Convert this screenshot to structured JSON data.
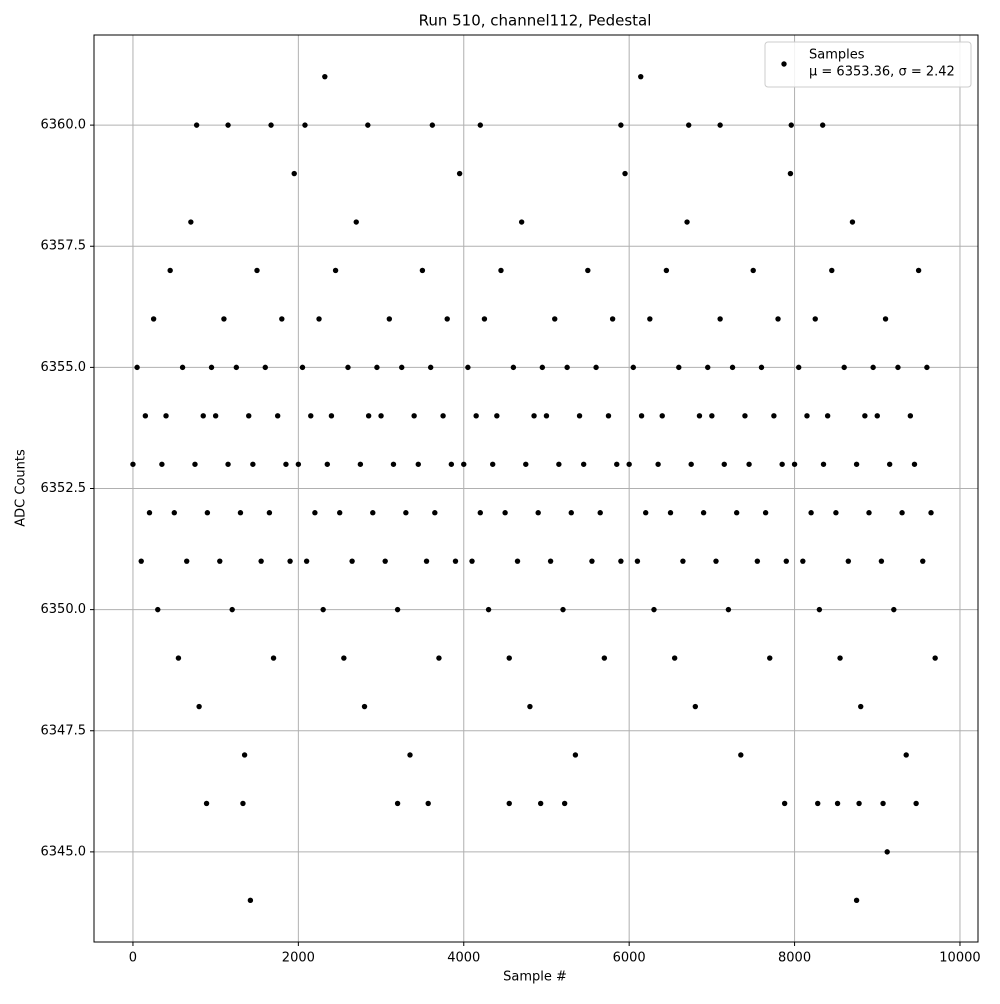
{
  "chart_data": {
    "type": "scatter",
    "title": "Run 510, channel112, Pedestal",
    "xlabel": "Sample #",
    "ylabel": "ADC Counts",
    "xlim": [
      -471,
      10218
    ],
    "ylim": [
      6343.14,
      6361.86
    ],
    "xticks": [
      0,
      2000,
      4000,
      6000,
      8000,
      10000
    ],
    "yticks": [
      {
        "value": 6345,
        "label": "6345.0"
      },
      {
        "value": 6347.5,
        "label": "6347.5"
      },
      {
        "value": 6350,
        "label": "6350.0"
      },
      {
        "value": 6352.5,
        "label": "6352.5"
      },
      {
        "value": 6355,
        "label": "6355.0"
      },
      {
        "value": 6357.5,
        "label": "6357.5"
      },
      {
        "value": 6360,
        "label": "6360.0"
      }
    ],
    "grid": true,
    "legend": "upper right",
    "series": [
      {
        "name": "Samples",
        "stats": "μ = 6353.36, σ = 2.42",
        "color": "#000000",
        "x": [
          0,
          50,
          100,
          150,
          200,
          250,
          300,
          350,
          400,
          450,
          500,
          550,
          600,
          650,
          700,
          750,
          800,
          850,
          900,
          950,
          1000,
          1050,
          1100,
          1150,
          1200,
          1250,
          1300,
          1350,
          1400,
          1450,
          1500,
          1550,
          1600,
          1650,
          1700,
          1750,
          1800,
          1850,
          1900,
          1950,
          2000,
          2050,
          2100,
          2150,
          2200,
          2250,
          2300,
          2350,
          2400,
          2450,
          2500,
          2550,
          2600,
          2650,
          2700,
          2750,
          2800,
          2850,
          2900,
          2950,
          3000,
          3050,
          3100,
          3150,
          3200,
          3250,
          3300,
          3350,
          3400,
          3450,
          3500,
          3550,
          3600,
          3650,
          3700,
          3750,
          3800,
          3850,
          3900,
          3950,
          4000,
          4050,
          4100,
          4150,
          4200,
          4250,
          4300,
          4350,
          4400,
          4450,
          4500,
          4550,
          4600,
          4650,
          4700,
          4750,
          4800,
          4850,
          4900,
          4950,
          5000,
          5050,
          5100,
          5150,
          5200,
          5250,
          5300,
          5350,
          5400,
          5450,
          5500,
          5550,
          5600,
          5650,
          5700,
          5750,
          5800,
          5850,
          5900,
          5950,
          6000,
          6050,
          6100,
          6150,
          6200,
          6250,
          6300,
          6350,
          6400,
          6450,
          6500,
          6550,
          6600,
          6650,
          6700,
          6750,
          6800,
          6850,
          6900,
          6950,
          7000,
          7050,
          7100,
          7150,
          7200,
          7250,
          7300,
          7350,
          7400,
          7450,
          7500,
          7550,
          7600,
          7650,
          7700,
          7750,
          7800,
          7850,
          7900,
          7950,
          8000,
          8050,
          8100,
          8150,
          8200,
          8250,
          8300,
          8350,
          8400,
          8450,
          8500,
          8550,
          8600,
          8650,
          8700,
          8750,
          8800,
          8850,
          8900,
          8950,
          9000,
          9050,
          9100,
          9150,
          9200,
          9250,
          9300,
          9350,
          9400,
          9450,
          9500,
          9550,
          9600,
          9650,
          9700,
          2320,
          6140,
          1420,
          8750,
          9120,
          890,
          1330,
          3200,
          3570,
          4550,
          4930,
          5220,
          7880,
          8280,
          8520,
          8780,
          9070,
          9470,
          770,
          1150,
          1670,
          2080,
          2840,
          3620,
          4200,
          5900,
          6720,
          7100,
          7960,
          8340
        ],
        "values": [
          6353,
          6355,
          6351,
          6354,
          6352,
          6356,
          6350,
          6353,
          6354,
          6357,
          6352,
          6349,
          6355,
          6351,
          6358,
          6353,
          6348,
          6354,
          6352,
          6355,
          6354,
          6351,
          6356,
          6353,
          6350,
          6355,
          6352,
          6347,
          6354,
          6353,
          6357,
          6351,
          6355,
          6352,
          6349,
          6354,
          6356,
          6353,
          6351,
          6359,
          6353,
          6355,
          6351,
          6354,
          6352,
          6356,
          6350,
          6353,
          6354,
          6357,
          6352,
          6349,
          6355,
          6351,
          6358,
          6353,
          6348,
          6354,
          6352,
          6355,
          6354,
          6351,
          6356,
          6353,
          6350,
          6355,
          6352,
          6347,
          6354,
          6353,
          6357,
          6351,
          6355,
          6352,
          6349,
          6354,
          6356,
          6353,
          6351,
          6359,
          6353,
          6355,
          6351,
          6354,
          6352,
          6356,
          6350,
          6353,
          6354,
          6357,
          6352,
          6349,
          6355,
          6351,
          6358,
          6353,
          6348,
          6354,
          6352,
          6355,
          6354,
          6351,
          6356,
          6353,
          6350,
          6355,
          6352,
          6347,
          6354,
          6353,
          6357,
          6351,
          6355,
          6352,
          6349,
          6354,
          6356,
          6353,
          6351,
          6359,
          6353,
          6355,
          6351,
          6354,
          6352,
          6356,
          6350,
          6353,
          6354,
          6357,
          6352,
          6349,
          6355,
          6351,
          6358,
          6353,
          6348,
          6354,
          6352,
          6355,
          6354,
          6351,
          6356,
          6353,
          6350,
          6355,
          6352,
          6347,
          6354,
          6353,
          6357,
          6351,
          6355,
          6352,
          6349,
          6354,
          6356,
          6353,
          6351,
          6359,
          6353,
          6355,
          6351,
          6354,
          6352,
          6356,
          6350,
          6353,
          6354,
          6357,
          6352,
          6349,
          6355,
          6351,
          6358,
          6353,
          6348,
          6354,
          6352,
          6355,
          6354,
          6351,
          6356,
          6353,
          6350,
          6355,
          6352,
          6347,
          6354,
          6353,
          6357,
          6351,
          6355,
          6352,
          6349,
          6361,
          6361,
          6344,
          6344,
          6345,
          6346,
          6346,
          6346,
          6346,
          6346,
          6346,
          6346,
          6346,
          6346,
          6346,
          6346,
          6346,
          6346,
          6360,
          6360,
          6360,
          6360,
          6360,
          6360,
          6360,
          6360,
          6360,
          6360,
          6360,
          6360
        ]
      }
    ]
  }
}
